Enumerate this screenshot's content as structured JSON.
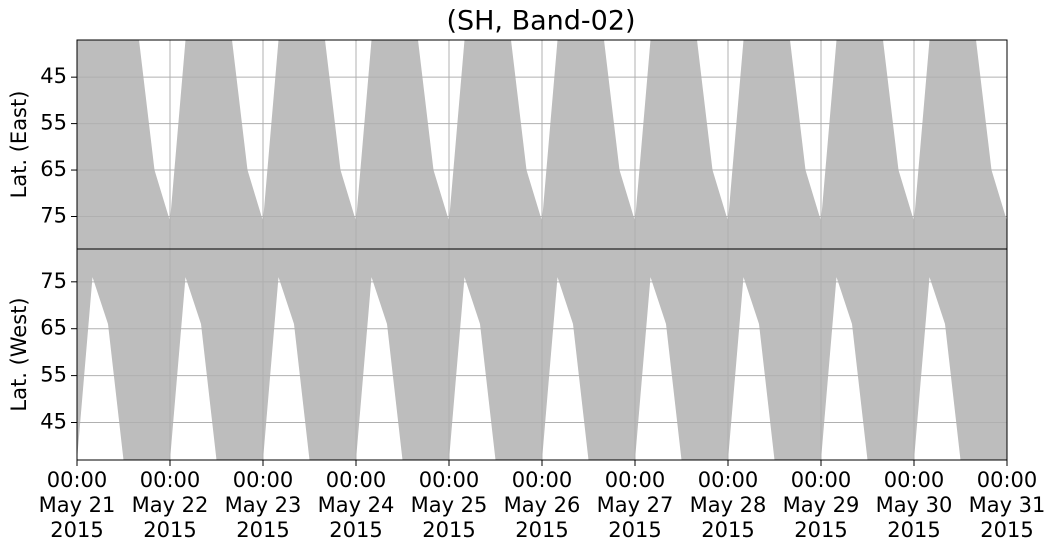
{
  "chart_data": [
    {
      "type": "area",
      "title": "(SH, Band-02)",
      "ylabel": "Lat. (East)",
      "grid": true,
      "ylim": [
        82,
        37
      ],
      "yticks": [
        45,
        55,
        65,
        75
      ],
      "xlim": [
        "2015-05-21T00:00",
        "2015-05-31T00:00"
      ],
      "x": [
        "2015-05-21T00:00",
        "2015-05-21T04:00",
        "2015-05-21T08:00",
        "2015-05-21T12:00",
        "2015-05-21T16:00",
        "2015-05-21T20:00",
        "2015-05-22T00:00",
        "2015-05-22T04:00",
        "2015-05-22T08:00",
        "2015-05-22T12:00",
        "2015-05-22T16:00",
        "2015-05-22T20:00",
        "2015-05-23T00:00",
        "2015-05-23T04:00",
        "2015-05-23T08:00",
        "2015-05-23T12:00",
        "2015-05-23T16:00",
        "2015-05-23T20:00",
        "2015-05-24T00:00",
        "2015-05-24T04:00",
        "2015-05-24T08:00",
        "2015-05-24T12:00",
        "2015-05-24T16:00",
        "2015-05-24T20:00",
        "2015-05-25T00:00",
        "2015-05-25T04:00",
        "2015-05-25T08:00",
        "2015-05-25T12:00",
        "2015-05-25T16:00",
        "2015-05-25T20:00",
        "2015-05-26T00:00",
        "2015-05-26T04:00",
        "2015-05-26T08:00",
        "2015-05-26T12:00",
        "2015-05-26T16:00",
        "2015-05-26T20:00",
        "2015-05-27T00:00",
        "2015-05-27T04:00",
        "2015-05-27T08:00",
        "2015-05-27T12:00",
        "2015-05-27T16:00",
        "2015-05-27T20:00",
        "2015-05-28T00:00",
        "2015-05-28T04:00",
        "2015-05-28T08:00",
        "2015-05-28T12:00",
        "2015-05-28T16:00",
        "2015-05-28T20:00",
        "2015-05-29T00:00",
        "2015-05-29T04:00",
        "2015-05-29T08:00",
        "2015-05-29T12:00",
        "2015-05-29T16:00",
        "2015-05-29T20:00",
        "2015-05-30T00:00",
        "2015-05-30T04:00",
        "2015-05-30T08:00",
        "2015-05-30T12:00",
        "2015-05-30T16:00",
        "2015-05-30T20:00",
        "2015-05-31T00:00"
      ],
      "series": [
        {
          "color": "#bdbdbd",
          "values": [
            37,
            37,
            37,
            37,
            37,
            65,
            76,
            37,
            37,
            37,
            37,
            65,
            76,
            37,
            37,
            37,
            37,
            65,
            76,
            37,
            37,
            37,
            37,
            65,
            76,
            37,
            37,
            37,
            37,
            65,
            76,
            37,
            37,
            37,
            37,
            65,
            76,
            37,
            37,
            37,
            37,
            65,
            76,
            37,
            37,
            37,
            37,
            65,
            76,
            37,
            37,
            37,
            37,
            65,
            76,
            37,
            37,
            37,
            37,
            65,
            76
          ]
        }
      ]
    },
    {
      "type": "area",
      "ylabel": "Lat. (West)",
      "grid": true,
      "ylim": [
        37,
        82
      ],
      "yticks": [
        45,
        55,
        65,
        75
      ],
      "xlim": [
        "2015-05-21T00:00",
        "2015-05-31T00:00"
      ],
      "xticks": [
        {
          "value": "2015-05-21T00:00",
          "label": "00:00\nMay 21\n2015"
        },
        {
          "value": "2015-05-22T00:00",
          "label": "00:00\nMay 22\n2015"
        },
        {
          "value": "2015-05-23T00:00",
          "label": "00:00\nMay 23\n2015"
        },
        {
          "value": "2015-05-24T00:00",
          "label": "00:00\nMay 24\n2015"
        },
        {
          "value": "2015-05-25T00:00",
          "label": "00:00\nMay 25\n2015"
        },
        {
          "value": "2015-05-26T00:00",
          "label": "00:00\nMay 26\n2015"
        },
        {
          "value": "2015-05-27T00:00",
          "label": "00:00\nMay 27\n2015"
        },
        {
          "value": "2015-05-28T00:00",
          "label": "00:00\nMay 28\n2015"
        },
        {
          "value": "2015-05-29T00:00",
          "label": "00:00\nMay 29\n2015"
        },
        {
          "value": "2015-05-30T00:00",
          "label": "00:00\nMay 30\n2015"
        },
        {
          "value": "2015-05-31T00:00",
          "label": "00:00\nMay 31\n2015"
        }
      ],
      "x": [
        "2015-05-21T00:00",
        "2015-05-21T04:00",
        "2015-05-21T08:00",
        "2015-05-21T12:00",
        "2015-05-21T16:00",
        "2015-05-21T20:00",
        "2015-05-22T00:00",
        "2015-05-22T04:00",
        "2015-05-22T08:00",
        "2015-05-22T12:00",
        "2015-05-22T16:00",
        "2015-05-22T20:00",
        "2015-05-23T00:00",
        "2015-05-23T04:00",
        "2015-05-23T08:00",
        "2015-05-23T12:00",
        "2015-05-23T16:00",
        "2015-05-23T20:00",
        "2015-05-24T00:00",
        "2015-05-24T04:00",
        "2015-05-24T08:00",
        "2015-05-24T12:00",
        "2015-05-24T16:00",
        "2015-05-24T20:00",
        "2015-05-25T00:00",
        "2015-05-25T04:00",
        "2015-05-25T08:00",
        "2015-05-25T12:00",
        "2015-05-25T16:00",
        "2015-05-25T20:00",
        "2015-05-26T00:00",
        "2015-05-26T04:00",
        "2015-05-26T08:00",
        "2015-05-26T12:00",
        "2015-05-26T16:00",
        "2015-05-26T20:00",
        "2015-05-27T00:00",
        "2015-05-27T04:00",
        "2015-05-27T08:00",
        "2015-05-27T12:00",
        "2015-05-27T16:00",
        "2015-05-27T20:00",
        "2015-05-28T00:00",
        "2015-05-28T04:00",
        "2015-05-28T08:00",
        "2015-05-28T12:00",
        "2015-05-28T16:00",
        "2015-05-28T20:00",
        "2015-05-29T00:00",
        "2015-05-29T04:00",
        "2015-05-29T08:00",
        "2015-05-29T12:00",
        "2015-05-29T16:00",
        "2015-05-29T20:00",
        "2015-05-30T00:00",
        "2015-05-30T04:00",
        "2015-05-30T08:00",
        "2015-05-30T12:00",
        "2015-05-30T16:00",
        "2015-05-30T20:00",
        "2015-05-31T00:00"
      ],
      "series": [
        {
          "color": "#bdbdbd",
          "values": [
            37,
            76,
            66,
            37,
            37,
            37,
            37,
            76,
            66,
            37,
            37,
            37,
            37,
            76,
            66,
            37,
            37,
            37,
            37,
            76,
            66,
            37,
            37,
            37,
            37,
            76,
            66,
            37,
            37,
            37,
            37,
            76,
            66,
            37,
            37,
            37,
            37,
            76,
            66,
            37,
            37,
            37,
            37,
            76,
            66,
            37,
            37,
            37,
            37,
            76,
            66,
            37,
            37,
            37,
            37,
            76,
            66,
            37,
            37,
            37,
            37
          ]
        }
      ]
    }
  ]
}
